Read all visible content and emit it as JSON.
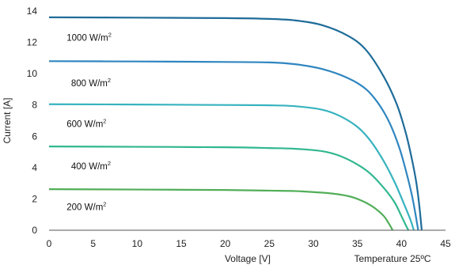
{
  "chart_data": {
    "type": "line",
    "title": "",
    "xlabel": "Voltage [V]",
    "ylabel": "Current [A]",
    "xlim": [
      0,
      45
    ],
    "ylim": [
      0,
      14
    ],
    "xticks": [
      0,
      5,
      10,
      15,
      20,
      25,
      30,
      35,
      40,
      45
    ],
    "yticks": [
      0,
      2,
      4,
      6,
      8,
      10,
      12,
      14
    ],
    "grid": false,
    "legend": "none",
    "note": "Temperature 25ºC",
    "series": [
      {
        "name": "1000 W/m²",
        "color": "#1f6c99",
        "values": [
          [
            0,
            13.6
          ],
          [
            10,
            13.58
          ],
          [
            20,
            13.55
          ],
          [
            25,
            13.5
          ],
          [
            28,
            13.4
          ],
          [
            31,
            13.1
          ],
          [
            34,
            12.4
          ],
          [
            36,
            11.5
          ],
          [
            38,
            9.8
          ],
          [
            39.5,
            8.0
          ],
          [
            40.5,
            6.2
          ],
          [
            41.2,
            4.5
          ],
          [
            41.7,
            3.0
          ],
          [
            42.0,
            1.7
          ],
          [
            42.2,
            0.6
          ],
          [
            42.3,
            0
          ]
        ]
      },
      {
        "name": "800 W/m²",
        "color": "#2f86c0",
        "values": [
          [
            0,
            10.8
          ],
          [
            10,
            10.78
          ],
          [
            20,
            10.75
          ],
          [
            25,
            10.72
          ],
          [
            28,
            10.6
          ],
          [
            31,
            10.3
          ],
          [
            34,
            9.7
          ],
          [
            36,
            9.0
          ],
          [
            37.5,
            8.0
          ],
          [
            38.7,
            6.8
          ],
          [
            39.8,
            5.2
          ],
          [
            40.6,
            3.6
          ],
          [
            41.2,
            2.2
          ],
          [
            41.6,
            1.0
          ],
          [
            41.9,
            0
          ]
        ]
      },
      {
        "name": "600 W/m²",
        "color": "#37b3bf",
        "values": [
          [
            0,
            8.05
          ],
          [
            10,
            8.03
          ],
          [
            20,
            8.0
          ],
          [
            25,
            7.98
          ],
          [
            28,
            7.92
          ],
          [
            31,
            7.7
          ],
          [
            33,
            7.3
          ],
          [
            35,
            6.6
          ],
          [
            36.5,
            5.7
          ],
          [
            38,
            4.4
          ],
          [
            39.2,
            3.1
          ],
          [
            40.2,
            1.8
          ],
          [
            41.0,
            0.7
          ],
          [
            41.4,
            0
          ]
        ]
      },
      {
        "name": "400 W/m²",
        "color": "#31b78f",
        "values": [
          [
            0,
            5.35
          ],
          [
            10,
            5.33
          ],
          [
            20,
            5.3
          ],
          [
            25,
            5.25
          ],
          [
            28,
            5.2
          ],
          [
            31,
            5.05
          ],
          [
            33,
            4.75
          ],
          [
            35,
            4.2
          ],
          [
            36.5,
            3.6
          ],
          [
            38,
            2.7
          ],
          [
            39.2,
            1.8
          ],
          [
            40.0,
            0.9
          ],
          [
            40.6,
            0.2
          ],
          [
            40.8,
            0
          ]
        ]
      },
      {
        "name": "200 W/m²",
        "color": "#52ae58",
        "values": [
          [
            0,
            2.62
          ],
          [
            10,
            2.6
          ],
          [
            20,
            2.57
          ],
          [
            25,
            2.53
          ],
          [
            28,
            2.5
          ],
          [
            31,
            2.4
          ],
          [
            33,
            2.28
          ],
          [
            34.5,
            2.1
          ],
          [
            36,
            1.75
          ],
          [
            37,
            1.4
          ],
          [
            38,
            0.9
          ],
          [
            38.6,
            0.4
          ],
          [
            39,
            0
          ]
        ]
      }
    ],
    "annotations": [
      {
        "text": "1000 W/m",
        "sup": "2",
        "x": 2,
        "y": 12.3
      },
      {
        "text": "800 W/m",
        "sup": "2",
        "x": 2.5,
        "y": 9.4
      },
      {
        "text": "600 W/m",
        "sup": "2",
        "x": 2,
        "y": 6.8
      },
      {
        "text": "400 W/m",
        "sup": "2",
        "x": 2.5,
        "y": 4.1
      },
      {
        "text": "200 W/m",
        "sup": "2",
        "x": 2,
        "y": 1.5
      }
    ]
  }
}
